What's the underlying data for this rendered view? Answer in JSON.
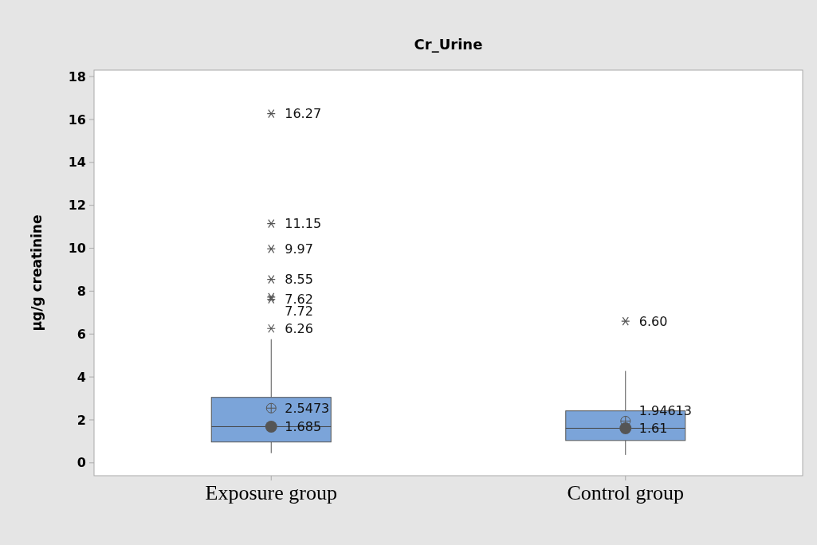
{
  "chart_data": {
    "type": "box",
    "title": "Cr_Urine",
    "ylabel": "µg/g creatinine",
    "categories": [
      "Exposure group",
      "Control group"
    ],
    "boxes": [
      {
        "low": 0.45,
        "q1": 0.97,
        "median": 1.685,
        "q3": 3.05,
        "high": 5.76,
        "mean": 2.5473,
        "outliers": [
          16.27,
          11.15,
          9.97,
          8.55,
          7.62,
          7.72,
          6.26
        ]
      },
      {
        "low": 0.37,
        "q1": 1.04,
        "median": 1.61,
        "q3": 2.42,
        "high": 4.28,
        "mean": 1.94613,
        "outliers": [
          6.6
        ]
      }
    ],
    "color": "#7ba4d9",
    "series": [
      {
        "type": "scatter",
        "x": [
          "Exposure group",
          "Control group"
        ],
        "values": [
          1.685,
          1.61
        ],
        "color": "#555555",
        "marker": "circle"
      }
    ],
    "ylim": [
      -0.6,
      18.3
    ],
    "yticks": [
      0,
      2,
      4,
      6,
      8,
      10,
      12,
      14,
      16,
      18
    ],
    "annotations": [
      "16.27",
      "11.15",
      "9.97",
      "8.55",
      "7.62",
      "7.72",
      "6.26",
      "1.685",
      "2.5473",
      "6.60",
      "1.61",
      "1.94613"
    ]
  }
}
